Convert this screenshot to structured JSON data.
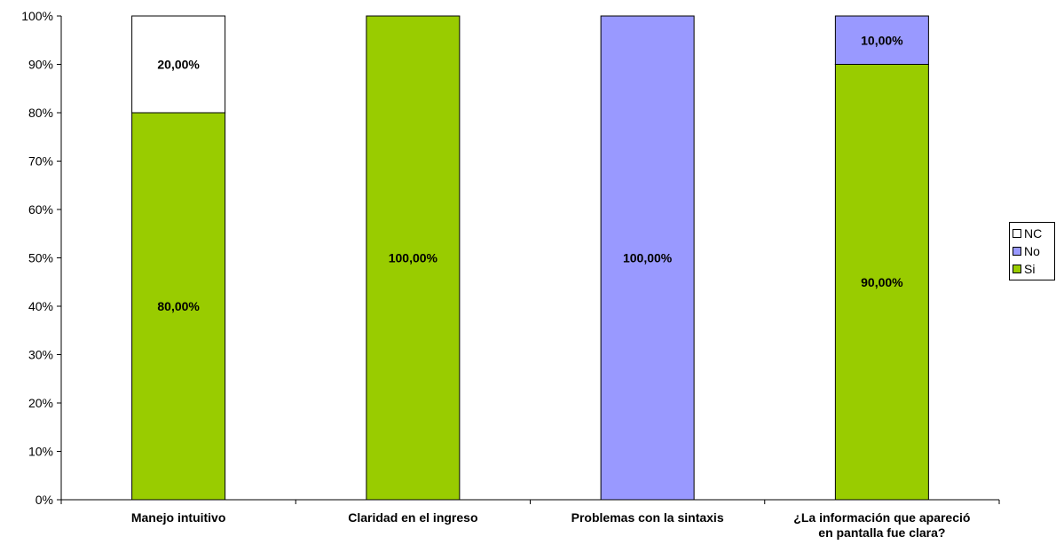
{
  "chart_data": {
    "type": "bar",
    "stacked": true,
    "percent_stacked": true,
    "categories": [
      [
        "Manejo intuitivo"
      ],
      [
        "Claridad en el ingreso"
      ],
      [
        "Problemas con la sintaxis"
      ],
      [
        "¿La información que apareció",
        "en pantalla fue clara?"
      ]
    ],
    "series": [
      {
        "name": "Si",
        "color": "#99cc00",
        "values": [
          80,
          100,
          0,
          90
        ],
        "labels": [
          "80,00%",
          "100,00%",
          "",
          "90,00%"
        ]
      },
      {
        "name": "No",
        "color": "#9999ff",
        "values": [
          0,
          0,
          100,
          10
        ],
        "labels": [
          "",
          "",
          "100,00%",
          "10,00%"
        ]
      },
      {
        "name": "NC",
        "color": "#ffffff",
        "values": [
          20,
          0,
          0,
          0
        ],
        "labels": [
          "20,00%",
          "",
          "",
          ""
        ]
      }
    ],
    "yticks": [
      "0%",
      "10%",
      "20%",
      "30%",
      "40%",
      "50%",
      "60%",
      "70%",
      "80%",
      "90%",
      "100%"
    ],
    "ylim": [
      0,
      100
    ],
    "grid": false,
    "legend_position": "right",
    "legend_order": [
      "NC",
      "No",
      "Si"
    ]
  }
}
